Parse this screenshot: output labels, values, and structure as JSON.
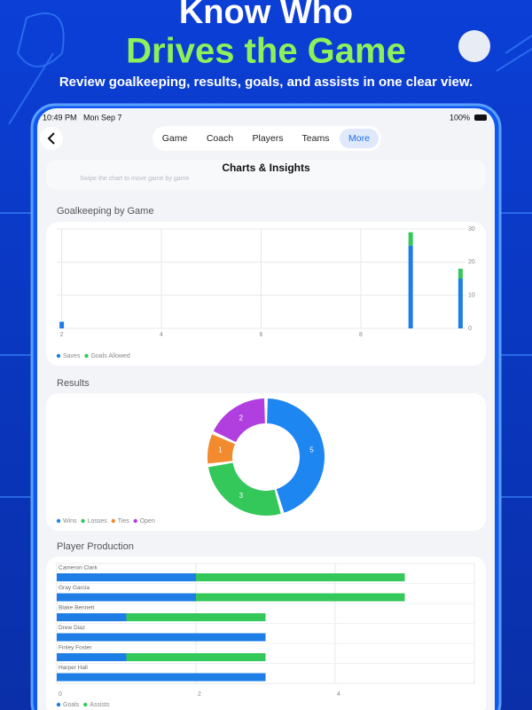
{
  "header": {
    "title_line1": "Know Who",
    "title_line2": "Drives the Game",
    "subtitle": "Review goalkeeping, results, goals, and assists in one clear view."
  },
  "status_bar": {
    "time": "10:49 PM",
    "date": "Mon Sep 7",
    "battery": "100%"
  },
  "nav": {
    "tabs": [
      "Game",
      "Coach",
      "Players",
      "Teams",
      "More"
    ]
  },
  "page_title": "Charts & Insights",
  "hint": "Swipe the chart to move game by game",
  "chart_data": [
    {
      "type": "bar",
      "stacked": true,
      "title": "Goalkeeping by Game",
      "x": [
        2,
        9,
        10
      ],
      "xlim": [
        1.9,
        10.1
      ],
      "xticks": [
        2,
        4,
        6,
        8
      ],
      "ylim": [
        0,
        30
      ],
      "yticks": [
        0,
        10,
        20,
        30
      ],
      "grid": true,
      "legend": "bottom-left",
      "series": [
        {
          "name": "Saves",
          "color": "#1e7ee6",
          "values": [
            2,
            25,
            15
          ]
        },
        {
          "name": "Goals Allowed",
          "color": "#34c759",
          "values": [
            0,
            4,
            3
          ]
        }
      ]
    },
    {
      "type": "donut",
      "title": "Results",
      "categories": [
        "Wins",
        "Losses",
        "Ties",
        "Open"
      ],
      "values": [
        5,
        3,
        1,
        2
      ],
      "colors": [
        "#1e86f0",
        "#34c759",
        "#f28a2e",
        "#b13fe0"
      ],
      "legend": "bottom-left"
    },
    {
      "type": "hbar",
      "stacked": true,
      "title": "Player Production",
      "categories": [
        "Cameron Clark",
        "Gray Garcia",
        "Blake Bennett",
        "Drew Diaz",
        "Finley Foster",
        "Harper Hall"
      ],
      "xlim": [
        0,
        6
      ],
      "xticks": [
        0,
        2,
        4
      ],
      "grid": true,
      "legend": "bottom-left",
      "series": [
        {
          "name": "Goals",
          "color": "#1e7ee6",
          "values": [
            2,
            2,
            1,
            3,
            1,
            3
          ]
        },
        {
          "name": "Assists",
          "color": "#34c759",
          "values": [
            3,
            3,
            2,
            0,
            2,
            0
          ]
        }
      ]
    }
  ]
}
